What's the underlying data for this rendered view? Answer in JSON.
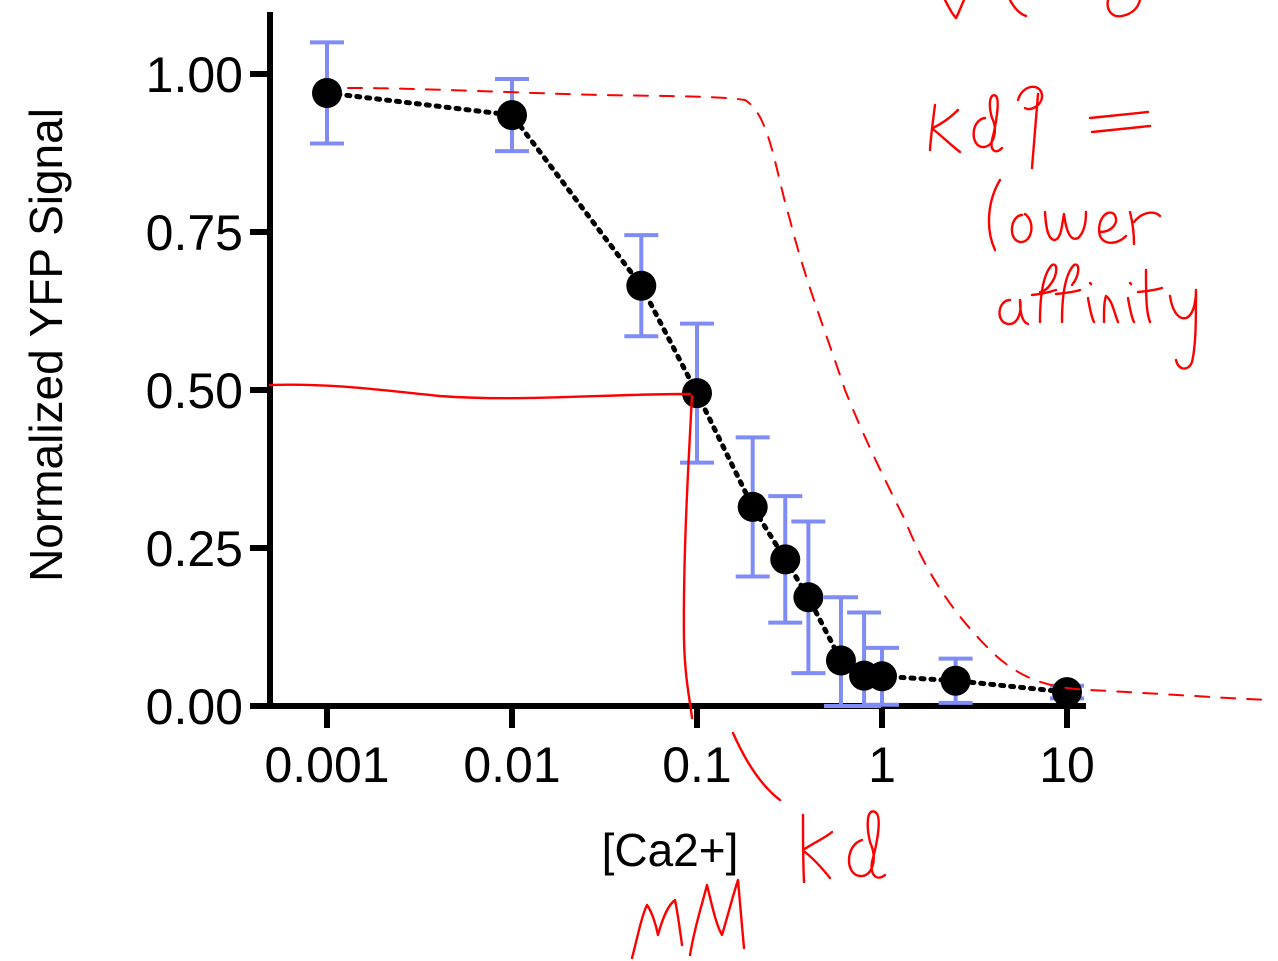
{
  "chart_data": {
    "type": "scatter",
    "title": "",
    "xlabel": "[Ca2+]",
    "ylabel": "Normalized YFP Signal",
    "xscale": "log",
    "xlim": [
      0.0006,
      12
    ],
    "ylim": [
      0,
      1.1
    ],
    "xticks": [
      {
        "value": 0.001,
        "label": "0.001"
      },
      {
        "value": 0.01,
        "label": "0.01"
      },
      {
        "value": 0.1,
        "label": "0.1"
      },
      {
        "value": 1,
        "label": "1"
      },
      {
        "value": 10,
        "label": "10"
      }
    ],
    "yticks": [
      {
        "value": 0,
        "label": "0.00"
      },
      {
        "value": 0.25,
        "label": "0.25"
      },
      {
        "value": 0.5,
        "label": "0.50"
      },
      {
        "value": 0.75,
        "label": "0.75"
      },
      {
        "value": 1,
        "label": "1.00"
      }
    ],
    "grid": false,
    "connector": "dotted",
    "colors": {
      "marker": "#000000",
      "error_bar": "#7f8cf5",
      "annotation": "#ff0000"
    },
    "series": [
      {
        "x": [
          0.001,
          0.01,
          0.05,
          0.1,
          0.2,
          0.3,
          0.4,
          0.6,
          0.8,
          1.0,
          2.5,
          10
        ],
        "y": [
          0.97,
          0.935,
          0.665,
          0.495,
          0.315,
          0.232,
          0.172,
          0.072,
          0.048,
          0.047,
          0.04,
          0.022
        ],
        "err": [
          0.08,
          0.057,
          0.08,
          0.11,
          0.11,
          0.1,
          0.12,
          0.1,
          0.1,
          0.045,
          0.035,
          0.01
        ]
      }
    ],
    "annotations": {
      "kd_label": "Kd",
      "unit_label": "mM",
      "note_lines": [
        "Kd ↑ =",
        "lower",
        "affinity"
      ]
    }
  }
}
